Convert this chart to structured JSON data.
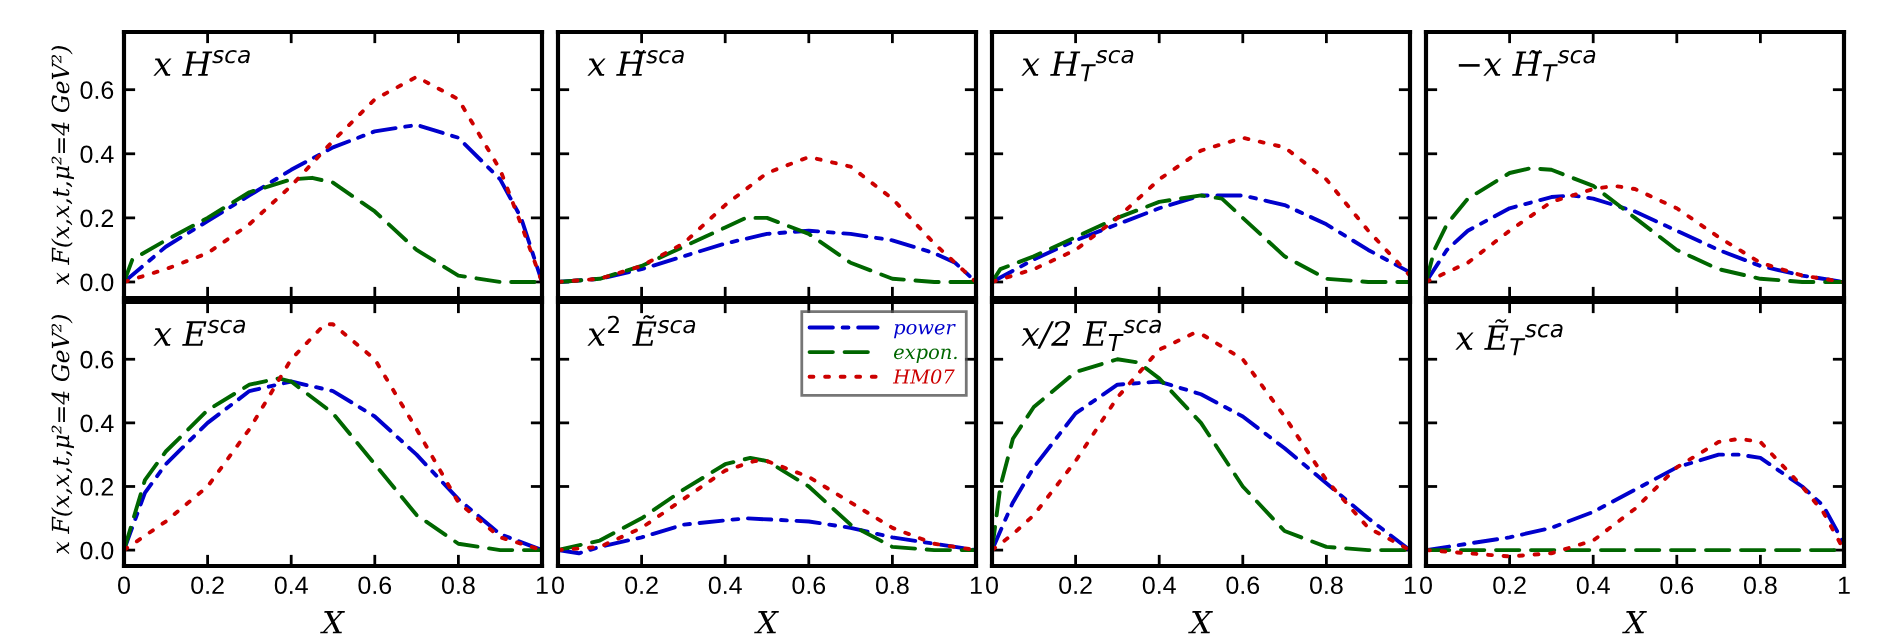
{
  "chart_data": [
    {
      "type": "line",
      "title": "x H$^{sca}$",
      "ylabel": "x F(x,x,t,μ²=4 GeV²)",
      "xlim": [
        0,
        1
      ],
      "ylim": [
        -0.05,
        0.78
      ],
      "xticks": [
        0,
        0.2,
        0.4,
        0.6,
        0.8,
        1
      ],
      "yticks": [
        {
          "value": 0,
          "label": "0.0"
        },
        {
          "value": 0.2,
          "label": "0.2"
        },
        {
          "value": 0.4,
          "label": "0.4"
        },
        {
          "value": 0.6,
          "label": "0.6"
        }
      ],
      "tick_labels": "y",
      "series": [
        {
          "color": "#0000cc",
          "line_style": "dashdot",
          "x": [
            0,
            0.1,
            0.2,
            0.3,
            0.4,
            0.5,
            0.6,
            0.7,
            0.8,
            0.9,
            0.95,
            1
          ],
          "values": [
            0,
            0.11,
            0.19,
            0.27,
            0.35,
            0.42,
            0.47,
            0.49,
            0.45,
            0.32,
            0.2,
            0
          ]
        },
        {
          "color": "#006600",
          "line_style": "dashed",
          "x": [
            0,
            0.02,
            0.1,
            0.2,
            0.3,
            0.4,
            0.45,
            0.5,
            0.6,
            0.7,
            0.8,
            0.9,
            1
          ],
          "values": [
            0,
            0.07,
            0.13,
            0.2,
            0.28,
            0.32,
            0.325,
            0.31,
            0.22,
            0.1,
            0.02,
            0,
            0
          ]
        },
        {
          "color": "#cc0000",
          "line_style": "dotted",
          "x": [
            0,
            0.1,
            0.2,
            0.3,
            0.4,
            0.5,
            0.6,
            0.7,
            0.8,
            0.9,
            0.95,
            1
          ],
          "values": [
            0,
            0.04,
            0.09,
            0.18,
            0.3,
            0.44,
            0.57,
            0.64,
            0.57,
            0.35,
            0.18,
            0
          ]
        }
      ]
    },
    {
      "type": "line",
      "title": "x H̃$^{sca}$",
      "xlim": [
        0,
        1
      ],
      "ylim": [
        -0.05,
        0.78
      ],
      "xticks": [
        0,
        0.2,
        0.4,
        0.6,
        0.8,
        1
      ],
      "yticks": [
        0,
        0.2,
        0.4,
        0.6
      ],
      "tick_labels": false,
      "series": [
        {
          "color": "#0000cc",
          "line_style": "dashdot",
          "x": [
            0,
            0.1,
            0.2,
            0.3,
            0.4,
            0.5,
            0.6,
            0.7,
            0.8,
            0.9,
            0.95,
            1
          ],
          "values": [
            0,
            0.01,
            0.04,
            0.08,
            0.12,
            0.15,
            0.16,
            0.15,
            0.13,
            0.09,
            0.06,
            0
          ]
        },
        {
          "color": "#006600",
          "line_style": "dashed",
          "x": [
            0,
            0.1,
            0.2,
            0.3,
            0.4,
            0.45,
            0.5,
            0.6,
            0.7,
            0.8,
            0.9,
            1
          ],
          "values": [
            0,
            0.01,
            0.05,
            0.11,
            0.17,
            0.2,
            0.2,
            0.15,
            0.06,
            0.01,
            0,
            0
          ]
        },
        {
          "color": "#cc0000",
          "line_style": "dotted",
          "x": [
            0,
            0.1,
            0.2,
            0.3,
            0.4,
            0.5,
            0.6,
            0.7,
            0.8,
            0.9,
            1
          ],
          "values": [
            0,
            0.01,
            0.05,
            0.12,
            0.24,
            0.34,
            0.39,
            0.36,
            0.26,
            0.12,
            0
          ]
        }
      ]
    },
    {
      "type": "line",
      "title": "x H$_{T}$$^{sca}$",
      "xlim": [
        0,
        1
      ],
      "ylim": [
        -0.05,
        0.78
      ],
      "xticks": [
        0,
        0.2,
        0.4,
        0.6,
        0.8,
        1
      ],
      "yticks": [
        0,
        0.2,
        0.4,
        0.6
      ],
      "tick_labels": false,
      "series": [
        {
          "color": "#0000cc",
          "line_style": "dashdot",
          "x": [
            0,
            0.1,
            0.2,
            0.3,
            0.4,
            0.5,
            0.6,
            0.7,
            0.8,
            0.9,
            1
          ],
          "values": [
            0,
            0.07,
            0.13,
            0.18,
            0.23,
            0.27,
            0.27,
            0.24,
            0.18,
            0.1,
            0.03
          ]
        },
        {
          "color": "#006600",
          "line_style": "dashed",
          "x": [
            0,
            0.02,
            0.1,
            0.2,
            0.3,
            0.4,
            0.5,
            0.55,
            0.6,
            0.7,
            0.8,
            0.9,
            1
          ],
          "values": [
            0,
            0.04,
            0.08,
            0.14,
            0.2,
            0.25,
            0.27,
            0.26,
            0.2,
            0.08,
            0.01,
            0,
            0
          ]
        },
        {
          "color": "#cc0000",
          "line_style": "dotted",
          "x": [
            0,
            0.1,
            0.2,
            0.3,
            0.4,
            0.5,
            0.6,
            0.7,
            0.8,
            0.9,
            1
          ],
          "values": [
            0,
            0.04,
            0.1,
            0.2,
            0.32,
            0.41,
            0.45,
            0.42,
            0.32,
            0.16,
            0.02
          ]
        }
      ]
    },
    {
      "type": "line",
      "title": "−x H̃$_{T}$$^{sca}$",
      "xlim": [
        0,
        1
      ],
      "ylim": [
        -0.05,
        0.78
      ],
      "xticks": [
        0,
        0.2,
        0.4,
        0.6,
        0.8,
        1
      ],
      "yticks": [
        0,
        0.2,
        0.4,
        0.6
      ],
      "tick_labels": false,
      "series": [
        {
          "color": "#0000cc",
          "line_style": "dashdot",
          "x": [
            0,
            0.05,
            0.1,
            0.2,
            0.3,
            0.35,
            0.4,
            0.5,
            0.6,
            0.7,
            0.8,
            0.9,
            1
          ],
          "values": [
            0,
            0.1,
            0.16,
            0.23,
            0.265,
            0.27,
            0.26,
            0.22,
            0.16,
            0.1,
            0.05,
            0.02,
            0
          ]
        },
        {
          "color": "#006600",
          "line_style": "dashed",
          "x": [
            0,
            0.02,
            0.05,
            0.1,
            0.2,
            0.25,
            0.3,
            0.4,
            0.5,
            0.6,
            0.7,
            0.8,
            0.9,
            1
          ],
          "values": [
            0,
            0.1,
            0.18,
            0.26,
            0.34,
            0.355,
            0.35,
            0.3,
            0.2,
            0.1,
            0.04,
            0.01,
            0,
            0
          ]
        },
        {
          "color": "#cc0000",
          "line_style": "dotted",
          "x": [
            0,
            0.1,
            0.2,
            0.3,
            0.4,
            0.45,
            0.5,
            0.6,
            0.7,
            0.8,
            0.9,
            1
          ],
          "values": [
            0,
            0.06,
            0.16,
            0.25,
            0.29,
            0.3,
            0.29,
            0.23,
            0.14,
            0.06,
            0.02,
            0
          ]
        }
      ]
    },
    {
      "type": "line",
      "title": "x E$^{sca}$",
      "xlabel": "X",
      "ylabel": "x F(x,x,t,μ²=4 GeV²)",
      "xlim": [
        0,
        1
      ],
      "ylim": [
        -0.05,
        0.78
      ],
      "xticks": [
        0,
        0.2,
        0.4,
        0.6,
        0.8,
        1
      ],
      "yticks": [
        {
          "value": 0,
          "label": "0.0"
        },
        {
          "value": 0.2,
          "label": "0.2"
        },
        {
          "value": 0.4,
          "label": "0.4"
        },
        {
          "value": 0.6,
          "label": "0.6"
        }
      ],
      "series": [
        {
          "color": "#0000cc",
          "line_style": "dashdot",
          "x": [
            0,
            0.05,
            0.1,
            0.2,
            0.3,
            0.4,
            0.5,
            0.6,
            0.7,
            0.8,
            0.9,
            1
          ],
          "values": [
            0,
            0.18,
            0.27,
            0.4,
            0.5,
            0.53,
            0.5,
            0.42,
            0.3,
            0.16,
            0.05,
            0
          ]
        },
        {
          "color": "#006600",
          "line_style": "dashed",
          "x": [
            0,
            0.05,
            0.1,
            0.2,
            0.3,
            0.37,
            0.4,
            0.5,
            0.6,
            0.7,
            0.8,
            0.9,
            1
          ],
          "values": [
            0,
            0.22,
            0.31,
            0.44,
            0.52,
            0.54,
            0.53,
            0.43,
            0.27,
            0.11,
            0.02,
            0,
            0
          ]
        },
        {
          "color": "#cc0000",
          "line_style": "dotted",
          "x": [
            0,
            0.1,
            0.2,
            0.3,
            0.4,
            0.48,
            0.5,
            0.6,
            0.7,
            0.8,
            0.9,
            1
          ],
          "values": [
            0,
            0.09,
            0.2,
            0.38,
            0.6,
            0.71,
            0.71,
            0.6,
            0.38,
            0.15,
            0.04,
            0
          ]
        }
      ]
    },
    {
      "type": "line",
      "title": "x$^{2}$ Ẽ$^{sca}$",
      "xlabel": "X",
      "xlim": [
        0,
        1
      ],
      "ylim": [
        -0.05,
        0.78
      ],
      "xticks": [
        0,
        0.2,
        0.4,
        0.6,
        0.8,
        1
      ],
      "yticks": [
        0,
        0.2,
        0.4,
        0.6
      ],
      "tick_labels": "x",
      "legend": "top right",
      "series": [
        {
          "name": "power",
          "color": "#0000cc",
          "line_style": "dashdot",
          "x": [
            0,
            0.05,
            0.1,
            0.2,
            0.3,
            0.45,
            0.6,
            0.7,
            0.8,
            0.9,
            1
          ],
          "values": [
            0,
            -0.01,
            0.01,
            0.04,
            0.08,
            0.1,
            0.09,
            0.07,
            0.04,
            0.02,
            0
          ]
        },
        {
          "name": "expon.",
          "color": "#006600",
          "line_style": "dashed",
          "x": [
            0,
            0.1,
            0.2,
            0.3,
            0.4,
            0.46,
            0.5,
            0.6,
            0.7,
            0.8,
            0.9,
            1
          ],
          "values": [
            0,
            0.03,
            0.1,
            0.19,
            0.27,
            0.29,
            0.28,
            0.2,
            0.08,
            0.01,
            0,
            0
          ]
        },
        {
          "name": "HM07",
          "color": "#cc0000",
          "line_style": "dotted",
          "x": [
            0,
            0.1,
            0.2,
            0.3,
            0.4,
            0.47,
            0.5,
            0.6,
            0.7,
            0.8,
            0.9,
            1
          ],
          "values": [
            0,
            0.01,
            0.07,
            0.16,
            0.25,
            0.28,
            0.28,
            0.23,
            0.15,
            0.07,
            0.02,
            0
          ]
        }
      ]
    },
    {
      "type": "line",
      "title": "x/2 E$_{T}$$^{sca}$",
      "xlabel": "X",
      "xlim": [
        0,
        1
      ],
      "ylim": [
        -0.05,
        0.78
      ],
      "xticks": [
        0,
        0.2,
        0.4,
        0.6,
        0.8,
        1
      ],
      "yticks": [
        0,
        0.2,
        0.4,
        0.6
      ],
      "tick_labels": "x",
      "series": [
        {
          "color": "#0000cc",
          "line_style": "dashdot",
          "x": [
            0,
            0.05,
            0.1,
            0.2,
            0.3,
            0.4,
            0.5,
            0.6,
            0.7,
            0.8,
            0.9,
            1
          ],
          "values": [
            0,
            0.15,
            0.26,
            0.43,
            0.52,
            0.53,
            0.49,
            0.42,
            0.32,
            0.21,
            0.1,
            0
          ]
        },
        {
          "color": "#006600",
          "line_style": "dashed",
          "x": [
            0,
            0.02,
            0.05,
            0.1,
            0.2,
            0.3,
            0.35,
            0.4,
            0.5,
            0.6,
            0.7,
            0.8,
            0.9,
            1
          ],
          "values": [
            0,
            0.2,
            0.35,
            0.45,
            0.56,
            0.6,
            0.59,
            0.54,
            0.4,
            0.2,
            0.06,
            0.01,
            0,
            0
          ]
        },
        {
          "color": "#cc0000",
          "line_style": "dotted",
          "x": [
            0,
            0.05,
            0.1,
            0.2,
            0.3,
            0.4,
            0.48,
            0.5,
            0.6,
            0.7,
            0.8,
            0.9,
            1
          ],
          "values": [
            0,
            0.05,
            0.11,
            0.28,
            0.48,
            0.63,
            0.68,
            0.68,
            0.6,
            0.42,
            0.22,
            0.07,
            0
          ]
        }
      ]
    },
    {
      "type": "line",
      "title": "x Ẽ$_{T}$$^{sca}$",
      "xlabel": "X",
      "xlim": [
        0,
        1
      ],
      "ylim": [
        -0.05,
        0.78
      ],
      "xticks": [
        0,
        0.2,
        0.4,
        0.6,
        0.8,
        1
      ],
      "yticks": [
        0,
        0.2,
        0.4,
        0.6
      ],
      "tick_labels": "x",
      "series": [
        {
          "color": "#0000cc",
          "line_style": "dashdot",
          "x": [
            0,
            0.1,
            0.2,
            0.3,
            0.4,
            0.5,
            0.6,
            0.7,
            0.75,
            0.8,
            0.9,
            0.95,
            1
          ],
          "values": [
            0,
            0.02,
            0.04,
            0.07,
            0.12,
            0.19,
            0.26,
            0.3,
            0.3,
            0.29,
            0.2,
            0.14,
            0.02
          ]
        },
        {
          "color": "#006600",
          "line_style": "dashed",
          "x": [
            0,
            0.5,
            1
          ],
          "values": [
            0,
            0,
            0
          ]
        },
        {
          "color": "#cc0000",
          "line_style": "dotted",
          "x": [
            0,
            0.1,
            0.2,
            0.3,
            0.4,
            0.5,
            0.6,
            0.7,
            0.75,
            0.8,
            0.9,
            0.95,
            1
          ],
          "values": [
            0,
            -0.01,
            -0.02,
            -0.01,
            0.03,
            0.13,
            0.26,
            0.34,
            0.35,
            0.34,
            0.2,
            0.12,
            0
          ]
        }
      ]
    }
  ]
}
